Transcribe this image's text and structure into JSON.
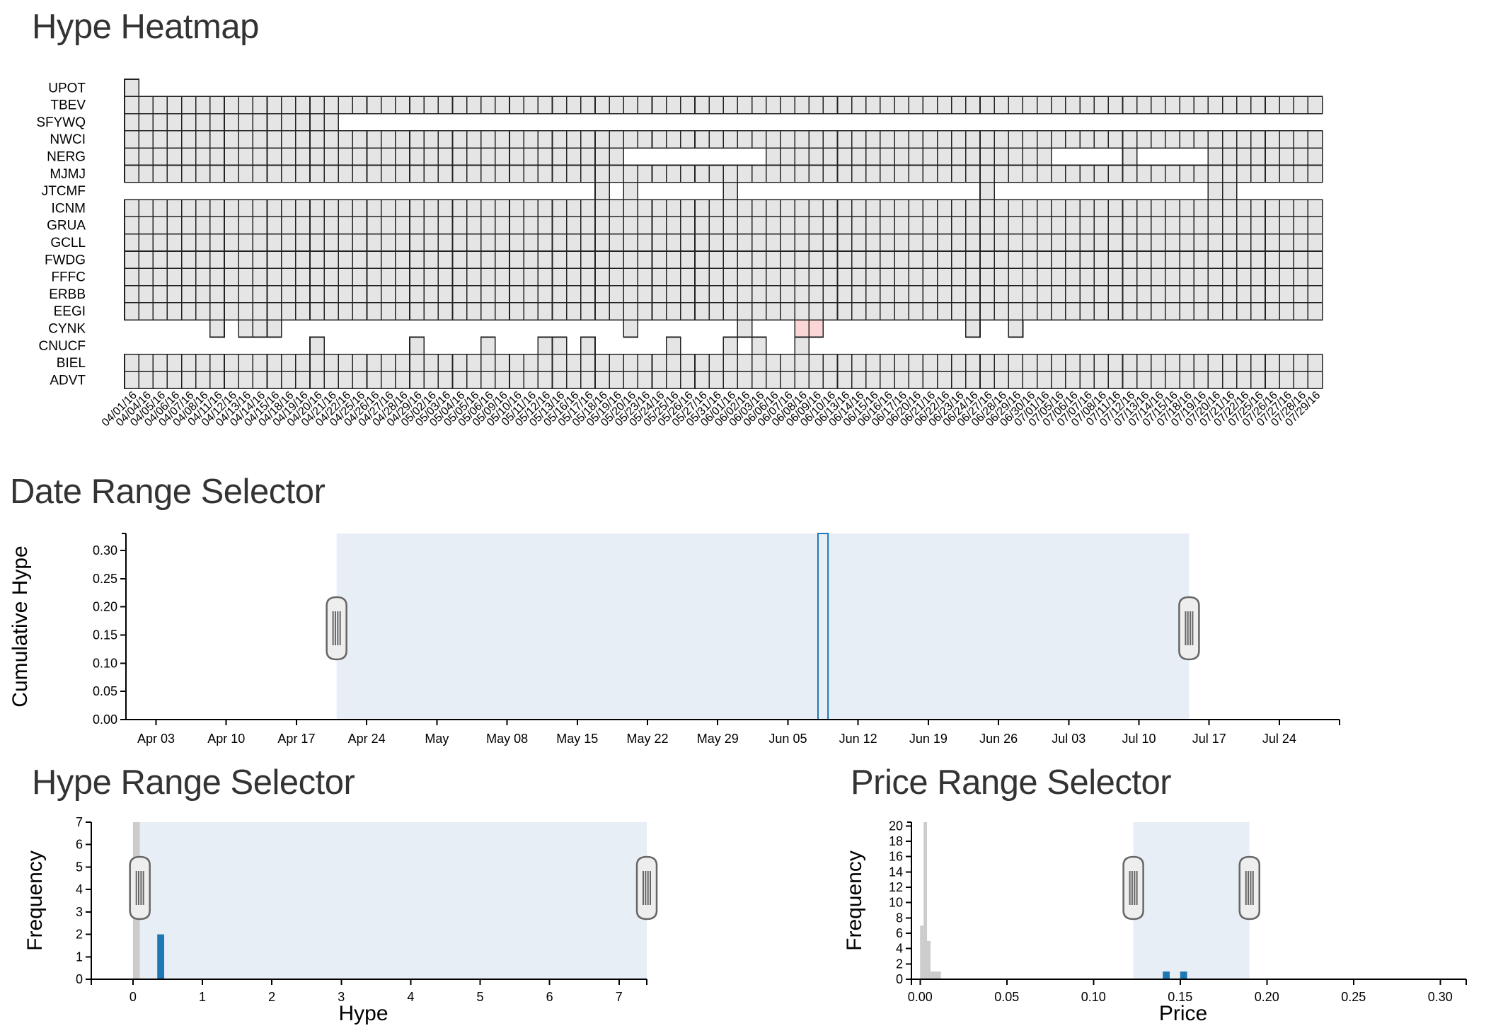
{
  "colors": {
    "cell_default": "#e5e5e5",
    "cell_highlight": "#fbd6d6",
    "selected_bar": "#1f77b4",
    "unselected_bar": "#cccccc",
    "brush": "#dfe8f2"
  },
  "heatmap": {
    "title": "Hype Heatmap",
    "tickers": [
      "UPOT",
      "TBEV",
      "SFYWQ",
      "NWCI",
      "NERG",
      "MJMJ",
      "JTCMF",
      "ICNM",
      "GRUA",
      "GCLL",
      "FWDG",
      "FFFC",
      "ERBB",
      "EEGI",
      "CYNK",
      "CNUCF",
      "BIEL",
      "ADVT"
    ],
    "dates": [
      "04/01/16",
      "04/04/16",
      "04/05/16",
      "04/06/16",
      "04/07/16",
      "04/08/16",
      "04/11/16",
      "04/12/16",
      "04/13/16",
      "04/14/16",
      "04/15/16",
      "04/18/16",
      "04/19/16",
      "04/20/16",
      "04/21/16",
      "04/22/16",
      "04/25/16",
      "04/26/16",
      "04/27/16",
      "04/28/16",
      "04/29/16",
      "05/02/16",
      "05/03/16",
      "05/04/16",
      "05/05/16",
      "05/06/16",
      "05/09/16",
      "05/10/16",
      "05/11/16",
      "05/12/16",
      "05/13/16",
      "05/16/16",
      "05/17/16",
      "05/18/16",
      "05/19/16",
      "05/20/16",
      "05/23/16",
      "05/24/16",
      "05/25/16",
      "05/26/16",
      "05/27/16",
      "05/31/16",
      "06/01/16",
      "06/02/16",
      "06/03/16",
      "06/06/16",
      "06/07/16",
      "06/08/16",
      "06/09/16",
      "06/10/16",
      "06/13/16",
      "06/14/16",
      "06/15/16",
      "06/16/16",
      "06/17/16",
      "06/20/16",
      "06/21/16",
      "06/22/16",
      "06/23/16",
      "06/24/16",
      "06/27/16",
      "06/28/16",
      "06/29/16",
      "06/30/16",
      "07/01/16",
      "07/05/16",
      "07/06/16",
      "07/07/16",
      "07/08/16",
      "07/11/16",
      "07/12/16",
      "07/13/16",
      "07/14/16",
      "07/15/16",
      "07/18/16",
      "07/19/16",
      "07/20/16",
      "07/21/16",
      "07/22/16",
      "07/25/16",
      "07/26/16",
      "07/27/16",
      "07/28/16",
      "07/29/16"
    ],
    "present": {
      "UPOT": "0-0",
      "TBEV": "0-83",
      "SFYWQ": "0-14",
      "NWCI": "0-83",
      "NERG": "0-34,45-64,70-70,76-83",
      "MJMJ": "0-83",
      "JTCMF": "33-33,35-35,42-42,60-60,76-77",
      "ICNM": "0-83",
      "GRUA": "0-83",
      "GCLL": "0-83",
      "FWDG": "0-83",
      "FFFC": "0-83",
      "ERBB": "0-83",
      "EEGI": "0-83",
      "CYNK": "6-6,8-10,35-35,43-43,47-48,59-59,62-62",
      "CNUCF": "13-13,20-20,25-25,29-30,32-32,38-38,42-42,44-44,47-47",
      "BIEL": "0-83",
      "ADVT": "0-83"
    },
    "highlight": [
      "CYNK:47",
      "CYNK:48"
    ]
  },
  "date_selector": {
    "title": "Date Range Selector",
    "chart_data": {
      "type": "line",
      "ylabel": "Cumulative Hype",
      "ylim": [
        0,
        0.33
      ],
      "yticks": [
        "0.00",
        "0.05",
        "0.10",
        "0.15",
        "0.20",
        "0.25",
        "0.30"
      ],
      "xtick_labels": [
        "Apr 03",
        "Apr 10",
        "Apr 17",
        "Apr 24",
        "May",
        "May 08",
        "May 15",
        "May 22",
        "May 29",
        "Jun 05",
        "Jun 12",
        "Jun 19",
        "Jun 26",
        "Jul 03",
        "Jul 10",
        "Jul 17",
        "Jul 24"
      ],
      "series": [
        {
          "x": [
            "2016-06-08",
            "2016-06-08",
            "2016-06-09",
            "2016-06-09"
          ],
          "values": [
            0,
            0.33,
            0.33,
            0
          ]
        }
      ],
      "brush": {
        "start": "2016-04-21",
        "end": "2016-07-15"
      }
    }
  },
  "hype_selector": {
    "title": "Hype Range Selector",
    "chart_data": {
      "type": "bar",
      "xlabel": "Hype",
      "ylabel": "Frequency",
      "xlim": [
        -0.6,
        7.4
      ],
      "ylim": [
        0,
        7
      ],
      "xticks": [
        "0",
        "1",
        "2",
        "3",
        "4",
        "5",
        "6",
        "7"
      ],
      "yticks": [
        "0",
        "1",
        "2",
        "3",
        "4",
        "5",
        "6",
        "7"
      ],
      "bins": [
        {
          "x0": 0.0,
          "x1": 0.1,
          "count": 7,
          "selected": false
        },
        {
          "x0": 0.35,
          "x1": 0.45,
          "count": 2,
          "selected": true
        }
      ],
      "brush": [
        0.1,
        7.4
      ]
    }
  },
  "price_selector": {
    "title": "Price Range Selector",
    "chart_data": {
      "type": "bar",
      "xlabel": "Price",
      "ylabel": "Frequency",
      "xlim": [
        -0.005,
        0.315
      ],
      "ylim": [
        0,
        20.5
      ],
      "xticks": [
        "0.00",
        "0.05",
        "0.10",
        "0.15",
        "0.20",
        "0.25",
        "0.30"
      ],
      "yticks": [
        "0",
        "2",
        "4",
        "6",
        "8",
        "10",
        "12",
        "14",
        "16",
        "18",
        "20"
      ],
      "bins": [
        {
          "x0": 0.0,
          "x1": 0.002,
          "count": 7,
          "selected": false
        },
        {
          "x0": 0.002,
          "x1": 0.004,
          "count": 21,
          "selected": false
        },
        {
          "x0": 0.004,
          "x1": 0.006,
          "count": 5,
          "selected": false
        },
        {
          "x0": 0.006,
          "x1": 0.012,
          "count": 1,
          "selected": false
        },
        {
          "x0": 0.14,
          "x1": 0.144,
          "count": 1,
          "selected": true
        },
        {
          "x0": 0.15,
          "x1": 0.154,
          "count": 1,
          "selected": true
        }
      ],
      "brush": [
        0.123,
        0.19
      ]
    }
  }
}
